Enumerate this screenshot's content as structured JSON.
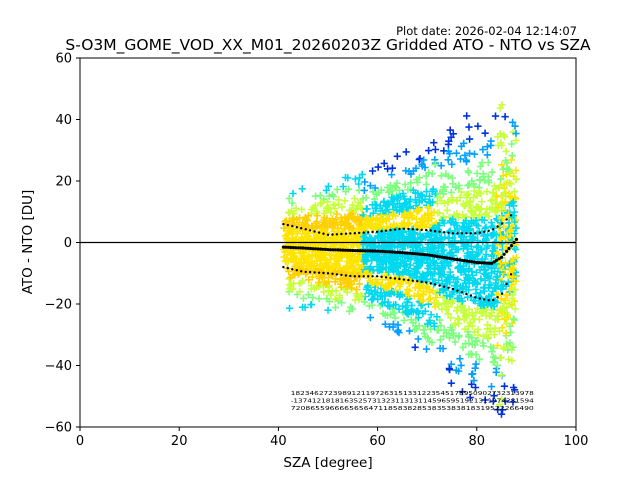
{
  "chart_data": {
    "type": "scatter",
    "title": "S-O3M_GOME_VOD_XX_M01_20260203Z Gridded ATO - NTO vs SZA",
    "plot_date": "Plot date: 2026-02-04 12:14:07",
    "xlabel": "SZA [degree]",
    "ylabel": "ATO - NTO [DU]",
    "xlim": [
      0,
      100
    ],
    "ylim": [
      -60,
      60
    ],
    "xticks": [
      0,
      20,
      40,
      60,
      80,
      100
    ],
    "yticks": [
      -60,
      -40,
      -20,
      0,
      20,
      40,
      60
    ],
    "grid": false,
    "legend": "none",
    "marker": "plus",
    "reference_line": {
      "y": 0,
      "color": "#000000"
    },
    "density_colors": [
      "#0033dd",
      "#00a0ff",
      "#00d8f0",
      "#7cff7c",
      "#c8ff3c",
      "#ffe400",
      "#ffd000"
    ],
    "scatter_envelope": [
      {
        "sza": 41,
        "low": -22,
        "high": 14
      },
      {
        "sza": 45,
        "low": -21,
        "high": 18
      },
      {
        "sza": 50,
        "low": -22,
        "high": 20
      },
      {
        "sza": 55,
        "low": -23,
        "high": 24
      },
      {
        "sza": 60,
        "low": -25,
        "high": 26
      },
      {
        "sza": 65,
        "low": -30,
        "high": 29
      },
      {
        "sza": 70,
        "low": -38,
        "high": 32
      },
      {
        "sza": 75,
        "low": -46,
        "high": 40
      },
      {
        "sza": 80,
        "low": -52,
        "high": 42
      },
      {
        "sza": 85,
        "low": -56,
        "high": 45
      },
      {
        "sza": 88,
        "low": -58,
        "high": 37
      }
    ],
    "mean_line": {
      "sza": [
        41,
        45,
        50,
        55,
        60,
        65,
        70,
        75,
        80,
        83,
        85,
        87,
        88
      ],
      "values": [
        -1.5,
        -1.8,
        -2.3,
        -2.6,
        -2.8,
        -3.3,
        -4.0,
        -5.3,
        -6.5,
        -6.8,
        -4.8,
        -1.0,
        1.0
      ]
    },
    "plus_std_line": {
      "sza": [
        41,
        45,
        50,
        55,
        60,
        65,
        70,
        75,
        80,
        83,
        85,
        87
      ],
      "values": [
        6,
        4.5,
        2.5,
        3,
        3.5,
        4.5,
        4,
        3,
        3,
        4,
        6,
        9
      ]
    },
    "minus_std_line": {
      "sza": [
        41,
        45,
        50,
        55,
        60,
        65,
        70,
        75,
        80,
        83,
        85,
        87
      ],
      "values": [
        -8,
        -9.5,
        -10,
        -11,
        -11,
        -12,
        -13,
        -15,
        -18,
        -19,
        -17,
        -10
      ]
    },
    "bottom_annotations": {
      "row1": "1823462723989121197263151331223545178950902732313978",
      "row2": "-1374121818163525731323113131145965951921311974281594",
      "row3": "72086559666656564711858382853835383818319522266490"
    }
  }
}
